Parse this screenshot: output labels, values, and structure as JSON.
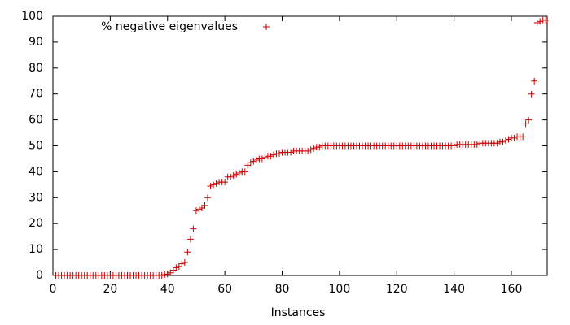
{
  "chart_data": {
    "type": "scatter",
    "xlabel": "Instances",
    "series": [
      {
        "name": "% negative eigenvalues",
        "color": "#cc0000",
        "x": [
          1,
          2,
          3,
          4,
          5,
          6,
          7,
          8,
          9,
          10,
          11,
          12,
          13,
          14,
          15,
          16,
          17,
          18,
          19,
          20,
          21,
          22,
          23,
          24,
          25,
          26,
          27,
          28,
          29,
          30,
          31,
          32,
          33,
          34,
          35,
          36,
          37,
          38,
          39,
          40,
          41,
          42,
          43,
          44,
          45,
          46,
          47,
          48,
          49,
          50,
          51,
          52,
          53,
          54,
          55,
          56,
          57,
          58,
          59,
          60,
          61,
          62,
          63,
          64,
          65,
          66,
          67,
          68,
          69,
          70,
          71,
          72,
          73,
          74,
          75,
          76,
          77,
          78,
          79,
          80,
          81,
          82,
          83,
          84,
          85,
          86,
          87,
          88,
          89,
          90,
          91,
          92,
          93,
          94,
          95,
          96,
          97,
          98,
          99,
          100,
          101,
          102,
          103,
          104,
          105,
          106,
          107,
          108,
          109,
          110,
          111,
          112,
          113,
          114,
          115,
          116,
          117,
          118,
          119,
          120,
          121,
          122,
          123,
          124,
          125,
          126,
          127,
          128,
          129,
          130,
          131,
          132,
          133,
          134,
          135,
          136,
          137,
          138,
          139,
          140,
          141,
          142,
          143,
          144,
          145,
          146,
          147,
          148,
          149,
          150,
          151,
          152,
          153,
          154,
          155,
          156,
          157,
          158,
          159,
          160,
          161,
          162,
          163,
          164,
          165,
          166,
          167,
          168,
          169,
          170,
          171,
          172
        ],
        "values": [
          0,
          0,
          0,
          0,
          0,
          0,
          0,
          0,
          0,
          0,
          0,
          0,
          0,
          0,
          0,
          0,
          0,
          0,
          0,
          0,
          0,
          0,
          0,
          0,
          0,
          0,
          0,
          0,
          0,
          0,
          0,
          0,
          0,
          0,
          0,
          0,
          0,
          0,
          0.3,
          0.5,
          1,
          2,
          3,
          3.5,
          4.5,
          5,
          9,
          14,
          18,
          25,
          25.5,
          26,
          27,
          30,
          34.5,
          35,
          35.5,
          36,
          36,
          36,
          38,
          38,
          38.5,
          39,
          39.5,
          40,
          40,
          42.5,
          43.5,
          44,
          44.5,
          45,
          45,
          45.5,
          46,
          46,
          46.5,
          47,
          47,
          47.5,
          47.5,
          47.5,
          47.5,
          48,
          48,
          48,
          48,
          48,
          48,
          48.5,
          49,
          49.5,
          49.5,
          50,
          50,
          50,
          50,
          50,
          50,
          50,
          50,
          50,
          50,
          50,
          50,
          50,
          50,
          50,
          50,
          50,
          50,
          50,
          50,
          50,
          50,
          50,
          50,
          50,
          50,
          50,
          50,
          50,
          50,
          50,
          50,
          50,
          50,
          50,
          50,
          50,
          50,
          50,
          50,
          50,
          50,
          50,
          50,
          50,
          50,
          50,
          50.5,
          50.5,
          50.5,
          50.5,
          50.5,
          50.5,
          50.5,
          50.5,
          51,
          51,
          51,
          51,
          51,
          51,
          51,
          51.5,
          51.5,
          52,
          52.5,
          53,
          53,
          53.5,
          53.5,
          53.5,
          58.5,
          60,
          70,
          75,
          97.5,
          98,
          98.5,
          98.5
        ]
      }
    ],
    "xlim": [
      0,
      172.5
    ],
    "ylim": [
      0,
      100
    ],
    "xticks": [
      0,
      20,
      40,
      60,
      80,
      100,
      120,
      140,
      160
    ],
    "yticks": [
      0,
      10,
      20,
      30,
      40,
      50,
      60,
      70,
      80,
      90,
      100
    ],
    "grid": false,
    "legend": "top-left"
  }
}
